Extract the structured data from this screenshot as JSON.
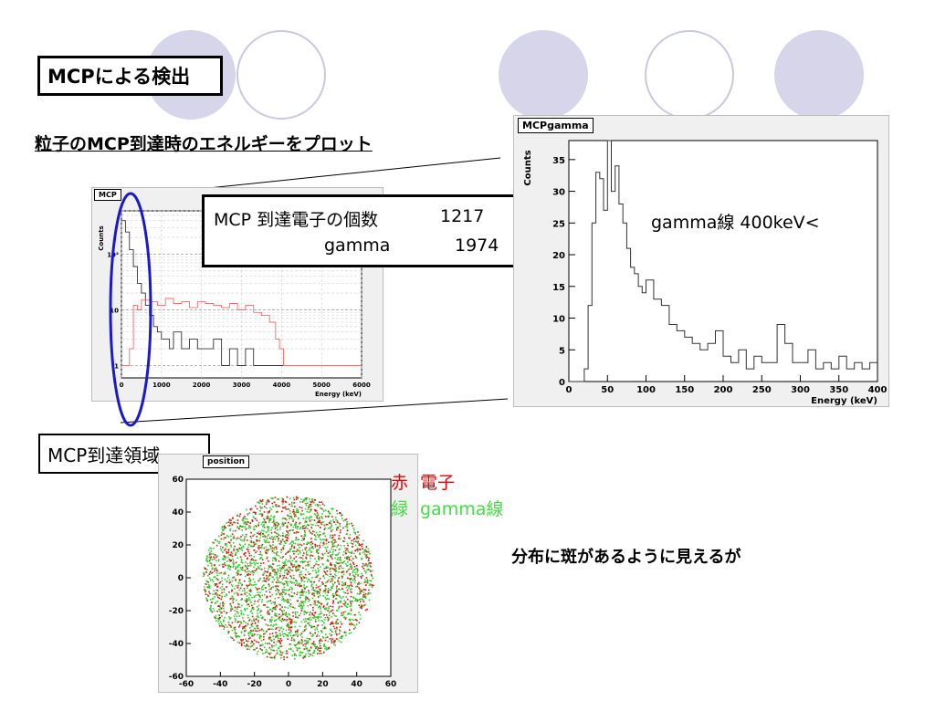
{
  "slide": {
    "title": "MCPによる検出",
    "subtitle": "粒子のMCP到達時のエネルギーをプロット",
    "count_box": {
      "electron_label": "MCP 到達電子の個数",
      "electron_value": "1217",
      "gamma_label": "gamma",
      "gamma_value": "1974"
    },
    "region_label": "MCP到達領域",
    "legend": {
      "red_char": "赤",
      "red_text": "電子",
      "green_char": "緑",
      "green_text": "gamma線"
    },
    "note": "分布に斑があるように見えるが",
    "gamma_annotation": "gamma線 400keV<"
  },
  "colors": {
    "electron": "#ff6666",
    "electron_label": "#e60000",
    "gamma": "#33cc33",
    "gamma_label": "#44dd44",
    "black_series": "#333333",
    "ellipse": "#1a1acc",
    "decor_circle": "#d6d5ea"
  },
  "chart_data": [
    {
      "type": "line",
      "title": "MCP",
      "xlabel": "Energy (keV)",
      "ylabel": "Counts",
      "xlim": [
        0,
        6000
      ],
      "ylim": [
        0.6,
        600
      ],
      "yscale": "log",
      "xticks": [
        "0",
        "1000",
        "2000",
        "3000",
        "4000",
        "5000",
        "6000"
      ],
      "yticks": [
        {
          "value": 1,
          "label": "1"
        },
        {
          "value": 10,
          "label": "10"
        },
        {
          "value": 100,
          "label": "10²"
        }
      ],
      "grid": true,
      "series": [
        {
          "color": "black",
          "x": [
            0,
            100,
            200,
            300,
            400,
            500,
            600,
            700,
            800,
            900,
            1000,
            1100,
            1200,
            1300,
            1500,
            1700,
            1900,
            2100,
            2300,
            2500,
            2700,
            2900,
            3100,
            3300,
            3500,
            3700,
            3900
          ],
          "y": [
            400,
            250,
            120,
            60,
            30,
            20,
            12,
            8,
            5,
            4,
            3,
            3,
            2,
            4,
            2,
            3,
            2,
            2,
            3,
            1,
            2,
            1,
            2,
            1,
            1,
            1,
            1
          ]
        },
        {
          "color": "red",
          "x": [
            0,
            200,
            300,
            400,
            500,
            700,
            900,
            1100,
            1300,
            1500,
            1700,
            1900,
            2100,
            2300,
            2500,
            2700,
            2900,
            3100,
            3300,
            3500,
            3700,
            3850,
            3950,
            4050,
            4150
          ],
          "y": [
            1,
            2,
            12,
            10,
            15,
            14,
            12,
            16,
            13,
            14,
            11,
            14,
            13,
            12,
            11,
            13,
            10,
            12,
            9,
            8,
            6,
            3,
            2,
            1,
            1
          ]
        }
      ]
    },
    {
      "type": "line",
      "title": "MCPgamma",
      "xlabel": "Energy (keV)",
      "ylabel": "Counts",
      "xlim": [
        0,
        400
      ],
      "ylim": [
        0,
        38
      ],
      "xticks": [
        0,
        50,
        100,
        150,
        200,
        250,
        300,
        350,
        400
      ],
      "yticks": [
        0,
        5,
        10,
        15,
        20,
        25,
        30,
        35
      ],
      "series": [
        {
          "color": "black",
          "x": [
            0,
            10,
            20,
            25,
            30,
            35,
            40,
            45,
            50,
            55,
            60,
            65,
            70,
            75,
            80,
            85,
            90,
            95,
            100,
            110,
            120,
            130,
            140,
            150,
            160,
            170,
            180,
            190,
            200,
            210,
            220,
            230,
            240,
            250,
            260,
            270,
            280,
            290,
            300,
            310,
            320,
            330,
            340,
            350,
            360,
            370,
            380,
            390,
            400
          ],
          "y": [
            0,
            0,
            2,
            12,
            25,
            33,
            32,
            27,
            38,
            30,
            34,
            28,
            25,
            21,
            18,
            17,
            15,
            14,
            16,
            13,
            12,
            9,
            8,
            7,
            6,
            5,
            6,
            8,
            4,
            3,
            5,
            2,
            4,
            3,
            3,
            9,
            6,
            3,
            3,
            5,
            2,
            3,
            2,
            4,
            2,
            3,
            2,
            3,
            3
          ]
        }
      ]
    },
    {
      "type": "scatter",
      "title": "position",
      "xlim": [
        -60,
        60
      ],
      "ylim": [
        -60,
        60
      ],
      "xticks": [
        -60,
        -40,
        -20,
        0,
        20,
        40,
        60
      ],
      "yticks": [
        -60,
        -40,
        -20,
        0,
        20,
        40,
        60
      ],
      "distribution": {
        "shape": "disc",
        "center": [
          0,
          0
        ],
        "radius_x": 50,
        "radius_y": 50
      },
      "series": [
        {
          "color": "red",
          "count": 1217
        },
        {
          "color": "green",
          "count": 1974
        }
      ]
    }
  ]
}
